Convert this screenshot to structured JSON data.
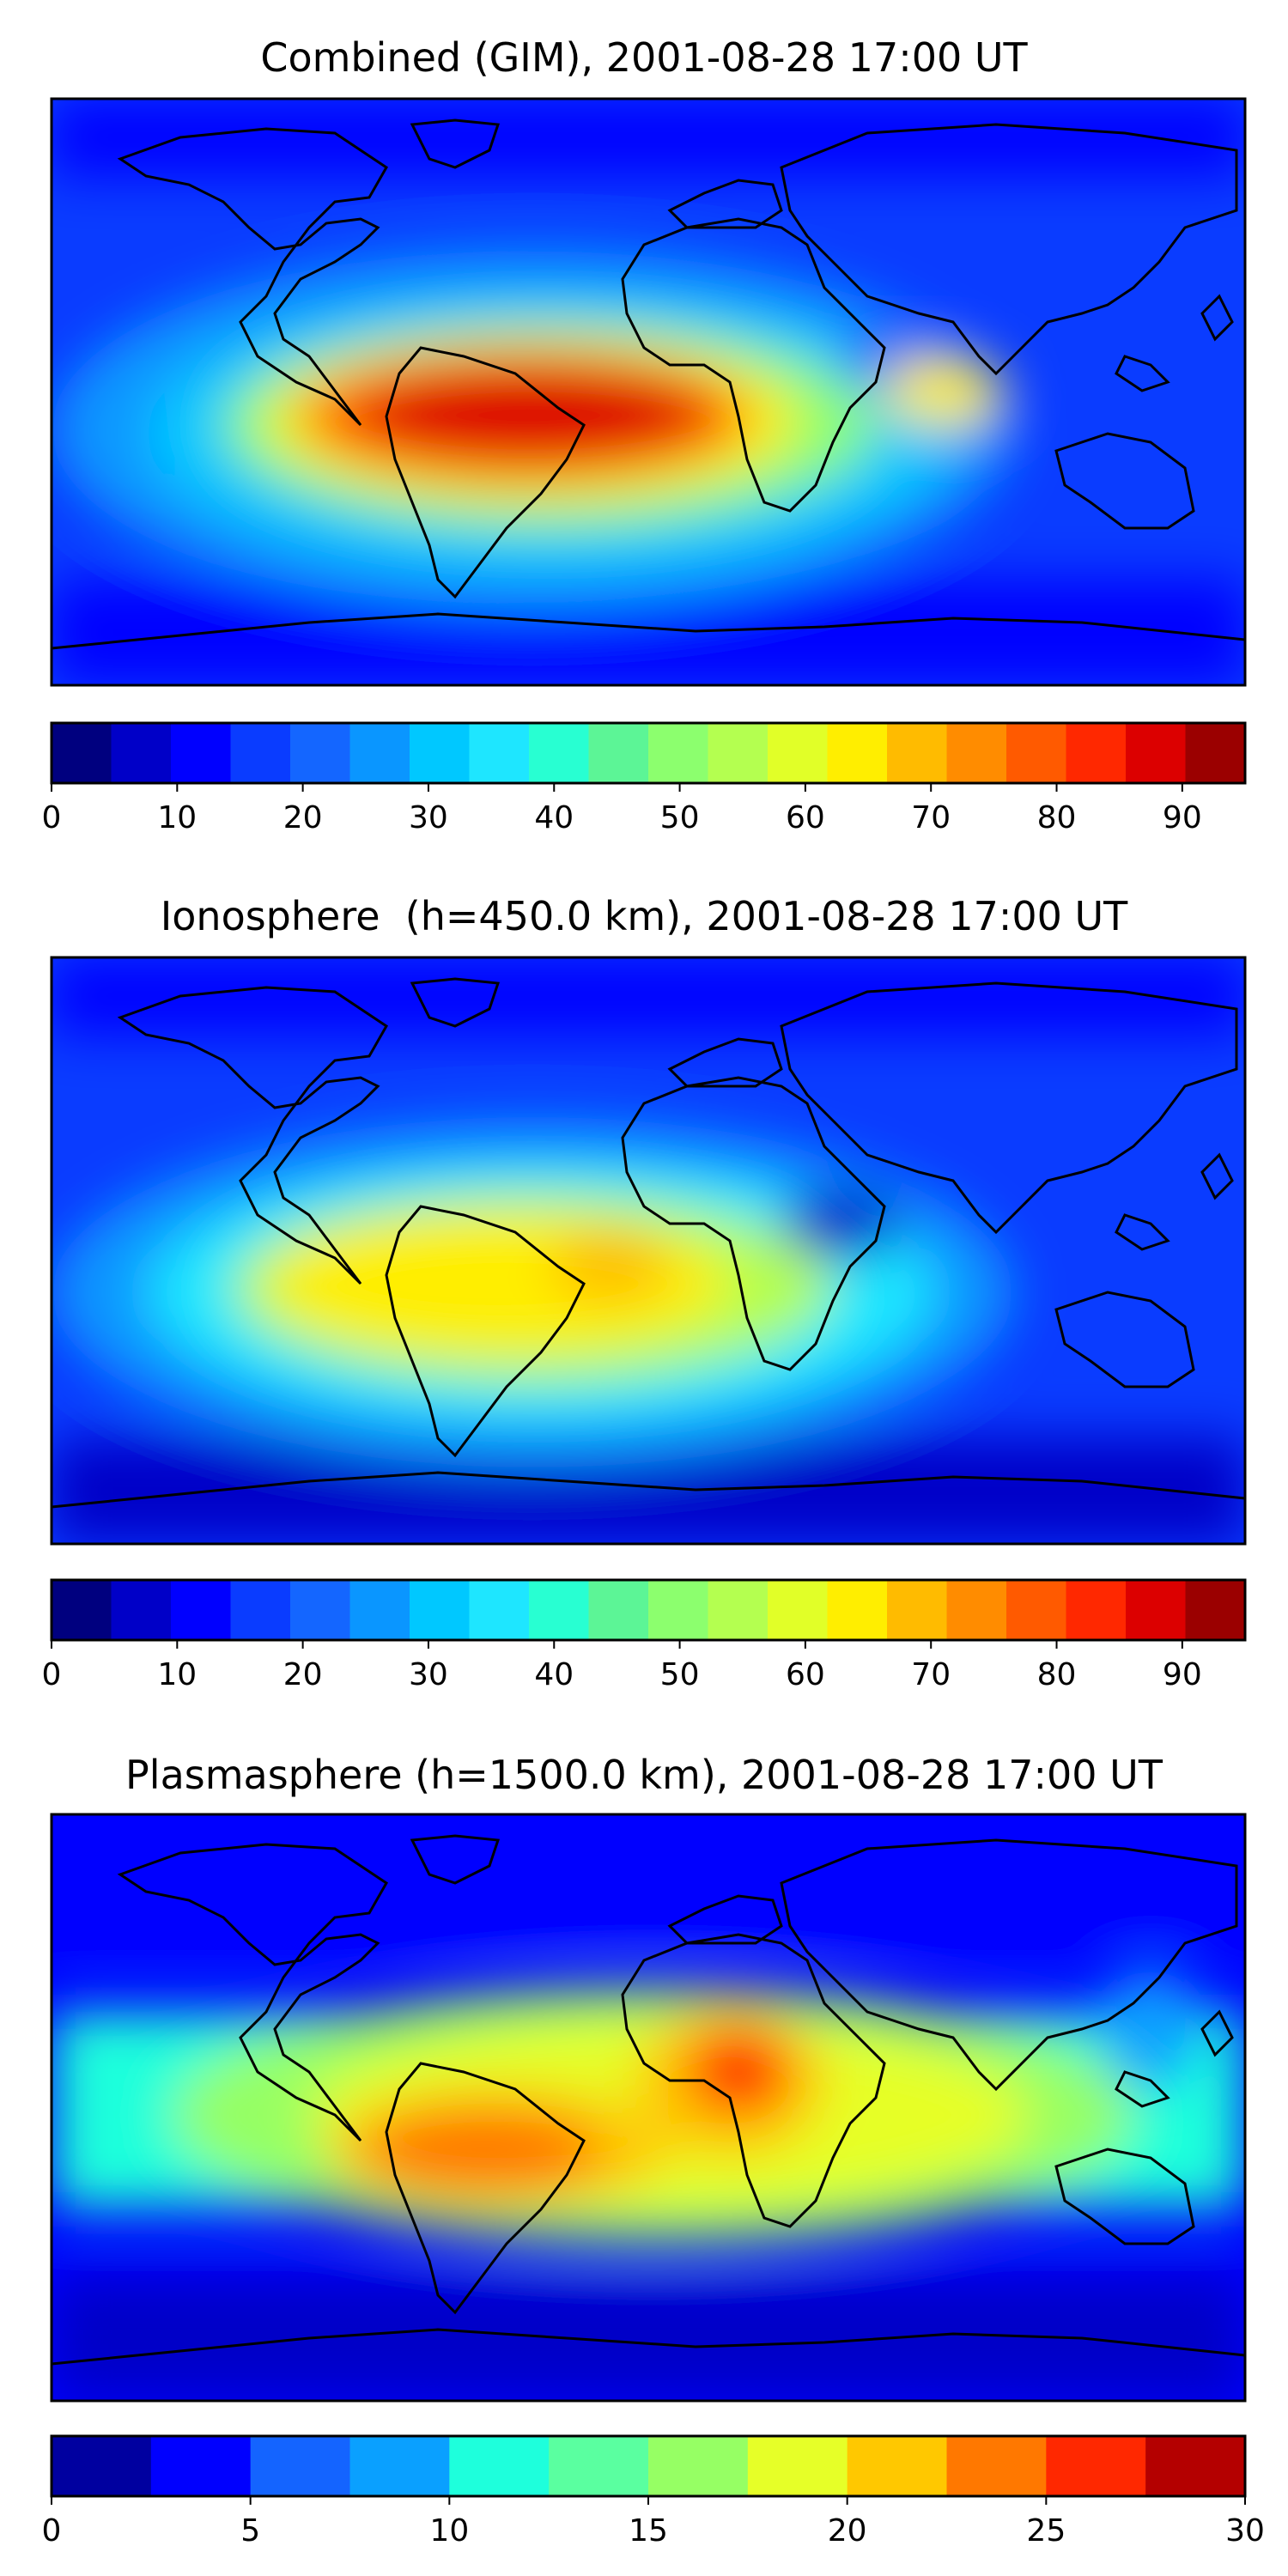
{
  "panels": [
    {
      "title": "Combined (GIM), 2001-08-28 17:00 UT",
      "colorbar": {
        "vmin": 0,
        "vmax": 95,
        "ticks": [
          "0",
          "10",
          "20",
          "30",
          "40",
          "50",
          "60",
          "70",
          "80",
          "90"
        ],
        "tick_values": [
          0,
          10,
          20,
          30,
          40,
          50,
          60,
          70,
          80,
          90
        ],
        "colors": [
          "#00007f",
          "#0000c8",
          "#0000ff",
          "#0a3cff",
          "#1466ff",
          "#0a96ff",
          "#00c8ff",
          "#1ee6ff",
          "#28ffd2",
          "#5cf596",
          "#8cff6e",
          "#b4ff50",
          "#e1ff28",
          "#ffee00",
          "#ffbb00",
          "#ff8c00",
          "#ff5a00",
          "#ff2800",
          "#dc0000",
          "#9b0000"
        ]
      },
      "map_colors": {
        "ocean": "#0a3cff",
        "belt": "#00c8ff",
        "mid": "#8cff6e",
        "high": "#ffee00",
        "peak": "#ff5a00",
        "core": "#dc0000"
      }
    },
    {
      "title": "Ionosphere  (h=450.0 km), 2001-08-28 17:00 UT",
      "colorbar": {
        "vmin": 0,
        "vmax": 95,
        "ticks": [
          "0",
          "10",
          "20",
          "30",
          "40",
          "50",
          "60",
          "70",
          "80",
          "90"
        ],
        "tick_values": [
          0,
          10,
          20,
          30,
          40,
          50,
          60,
          70,
          80,
          90
        ],
        "colors": [
          "#00007f",
          "#0000c8",
          "#0000ff",
          "#0a3cff",
          "#1466ff",
          "#0a96ff",
          "#00c8ff",
          "#1ee6ff",
          "#28ffd2",
          "#5cf596",
          "#8cff6e",
          "#b4ff50",
          "#e1ff28",
          "#ffee00",
          "#ffbb00",
          "#ff8c00",
          "#ff5a00",
          "#ff2800",
          "#dc0000",
          "#9b0000"
        ]
      },
      "map_colors": {
        "ocean": "#0a3cff",
        "belt": "#1ee6ff",
        "mid": "#b4ff50",
        "high": "#ffee00",
        "peak": "#ffbb00",
        "core": "#ffee00"
      }
    },
    {
      "title": "Plasmasphere (h=1500.0 km), 2001-08-28 17:00 UT",
      "colorbar": {
        "vmin": 0,
        "vmax": 30,
        "ticks": [
          "0",
          "5",
          "10",
          "15",
          "20",
          "25",
          "30"
        ],
        "tick_values": [
          0,
          5,
          10,
          15,
          20,
          25,
          30
        ],
        "colors": [
          "#0000a0",
          "#0000ff",
          "#1464ff",
          "#0aa0ff",
          "#1effdc",
          "#5affa0",
          "#96ff64",
          "#e6ff28",
          "#ffc800",
          "#ff7800",
          "#ff2800",
          "#b40000"
        ]
      },
      "map_colors": {
        "ocean": "#0000ff",
        "belt": "#1effdc",
        "mid": "#96ff64",
        "high": "#e6ff28",
        "peak": "#ffc800",
        "core": "#ff2800"
      }
    }
  ]
}
